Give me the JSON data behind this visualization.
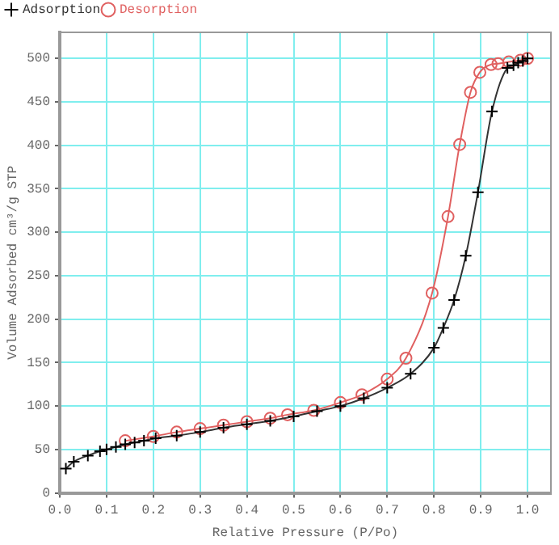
{
  "chart_data": {
    "type": "line",
    "xlabel": "Relative Pressure (P/Po)",
    "ylabel": "Volume Adsorbed cm³/g STP",
    "xlim": [
      0,
      1.05
    ],
    "ylim": [
      0,
      530
    ],
    "xticks": [
      {
        "value": 0,
        "label": "0.0"
      },
      {
        "value": 0.1,
        "label": "0.1"
      },
      {
        "value": 0.2,
        "label": "0.2"
      },
      {
        "value": 0.3,
        "label": "0.3"
      },
      {
        "value": 0.4,
        "label": "0.4"
      },
      {
        "value": 0.5,
        "label": "0.5"
      },
      {
        "value": 0.6,
        "label": "0.6"
      },
      {
        "value": 0.7,
        "label": "0.7"
      },
      {
        "value": 0.8,
        "label": "0.8"
      },
      {
        "value": 0.9,
        "label": "0.9"
      },
      {
        "value": 1,
        "label": "1.0"
      }
    ],
    "yticks": [
      0,
      50,
      100,
      150,
      200,
      250,
      300,
      350,
      400,
      450,
      500
    ],
    "grid": true,
    "legend": "top left",
    "line_style": "solid",
    "series": [
      {
        "name": "Adsorption",
        "color": "#333333",
        "marker": "cross",
        "x": [
          0.013,
          0.03,
          0.06,
          0.086,
          0.1,
          0.12,
          0.14,
          0.16,
          0.18,
          0.205,
          0.25,
          0.3,
          0.35,
          0.4,
          0.45,
          0.5,
          0.55,
          0.6,
          0.65,
          0.7,
          0.75,
          0.8,
          0.82,
          0.843,
          0.868,
          0.894,
          0.924,
          0.957,
          0.97,
          0.98,
          0.99,
          1.0
        ],
        "values": [
          28,
          36,
          43,
          48,
          50,
          53,
          56,
          58,
          60,
          63,
          66,
          70,
          75,
          79,
          83,
          88,
          94,
          100,
          109,
          121,
          137,
          167,
          190,
          222,
          273,
          346,
          439,
          489,
          492,
          495,
          497,
          500
        ]
      },
      {
        "name": "Desorption",
        "color": "#e06060",
        "marker": "circle",
        "x": [
          1.0,
          0.985,
          0.96,
          0.937,
          0.922,
          0.898,
          0.878,
          0.855,
          0.83,
          0.796,
          0.74,
          0.7,
          0.646,
          0.6,
          0.543,
          0.487,
          0.45,
          0.4,
          0.35,
          0.3,
          0.25,
          0.2,
          0.14
        ],
        "values": [
          500,
          498,
          496,
          494,
          493,
          484,
          461,
          401,
          318,
          230,
          155,
          131,
          113,
          104,
          95,
          90,
          86,
          82,
          78,
          74,
          70,
          65,
          60
        ]
      }
    ]
  }
}
